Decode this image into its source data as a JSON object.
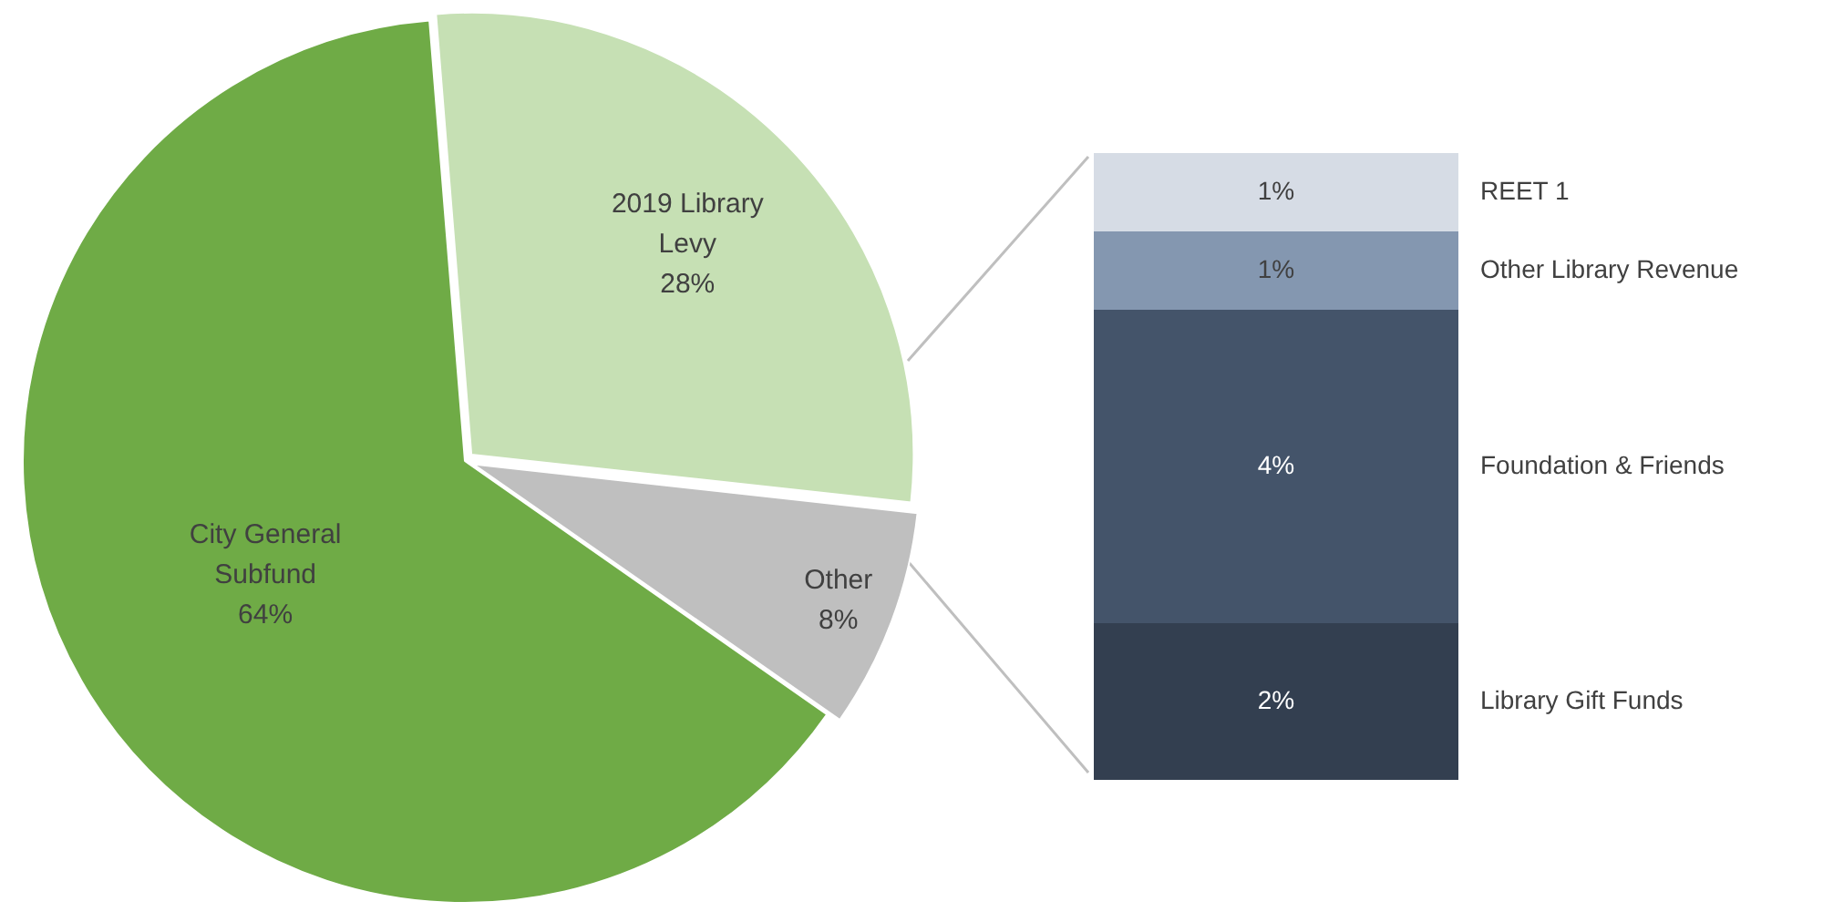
{
  "chart_data": [
    {
      "type": "pie",
      "categories": [
        "City General Subfund",
        "2019 Library Levy",
        "Other"
      ],
      "values": [
        64,
        28,
        8
      ],
      "colors": [
        "#6fab46",
        "#c6e0b4",
        "#bfbfbf"
      ],
      "value_labels": [
        "64%",
        "28%",
        "8%"
      ],
      "legend": false
    },
    {
      "type": "bar",
      "stacked": true,
      "categories": [
        null
      ],
      "legend": false,
      "series": [
        {
          "name": "Library Gift Funds",
          "color": "#333f50",
          "values": [
            2
          ],
          "value_labels": [
            "2%"
          ]
        },
        {
          "name": "Foundation & Friends",
          "color": "#44546a",
          "values": [
            4
          ],
          "value_labels": [
            "4%"
          ]
        },
        {
          "name": "Other Library Revenue",
          "color": "#8497b0",
          "values": [
            1
          ],
          "value_labels": [
            "1%"
          ]
        },
        {
          "name": "REET 1",
          "color": "#d6dce5",
          "values": [
            1
          ],
          "value_labels": [
            "1%"
          ]
        }
      ]
    }
  ]
}
